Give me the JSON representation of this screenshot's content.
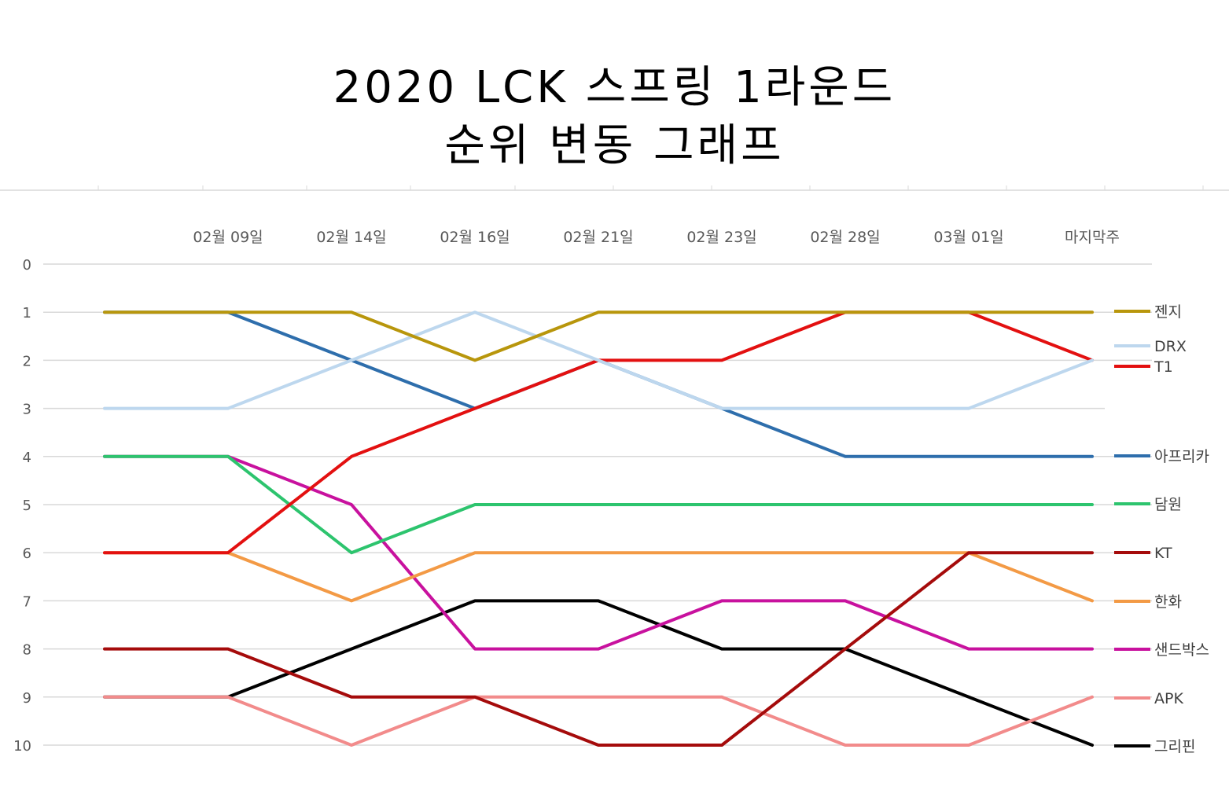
{
  "chart_data": {
    "type": "line",
    "title": [
      "2020 LCK 스프링 1라운드",
      "순위 변동 그래프"
    ],
    "xlabel": "",
    "ylabel": "",
    "categories": [
      "",
      "02월 09일",
      "02월 14일",
      "02월 16일",
      "02월 21일",
      "02월 23일",
      "02월 28일",
      "03월 01일",
      "마지막주"
    ],
    "y_ticks": [
      "0",
      "1",
      "2",
      "3",
      "4",
      "5",
      "6",
      "7",
      "8",
      "9",
      "10"
    ],
    "ylim": [
      0,
      10
    ],
    "y_inverted": true,
    "grid": true,
    "legend_position": "right",
    "series": [
      {
        "name": "젠지",
        "color": "#B8960C",
        "values": [
          1,
          1,
          1,
          2,
          1,
          1,
          1,
          1,
          1
        ]
      },
      {
        "name": "DRX",
        "color": "#BDD7EE",
        "values": [
          3,
          3,
          2,
          1,
          2,
          3,
          3,
          3,
          2
        ]
      },
      {
        "name": "T1",
        "color": "#E31010",
        "values": [
          6,
          6,
          4,
          3,
          2,
          2,
          1,
          1,
          2
        ]
      },
      {
        "name": "아프리카",
        "color": "#2E6EAC",
        "values": [
          1,
          1,
          2,
          3,
          2,
          3,
          4,
          4,
          4
        ]
      },
      {
        "name": "담원",
        "color": "#2DC46E",
        "values": [
          4,
          4,
          6,
          5,
          5,
          5,
          5,
          5,
          5
        ]
      },
      {
        "name": "KT",
        "color": "#A50B0B",
        "values": [
          8,
          8,
          9,
          9,
          10,
          10,
          8,
          6,
          6
        ]
      },
      {
        "name": "한화",
        "color": "#F39A45",
        "values": [
          6,
          6,
          7,
          6,
          6,
          6,
          6,
          6,
          7
        ]
      },
      {
        "name": "샌드박스",
        "color": "#C8119E",
        "values": [
          4,
          4,
          5,
          8,
          8,
          7,
          7,
          8,
          8
        ]
      },
      {
        "name": "APK",
        "color": "#F28B8B",
        "values": [
          9,
          9,
          10,
          9,
          9,
          9,
          10,
          10,
          9
        ]
      },
      {
        "name": "그리핀",
        "color": "#000000",
        "values": [
          9,
          9,
          8,
          7,
          7,
          8,
          8,
          9,
          10
        ]
      }
    ]
  }
}
